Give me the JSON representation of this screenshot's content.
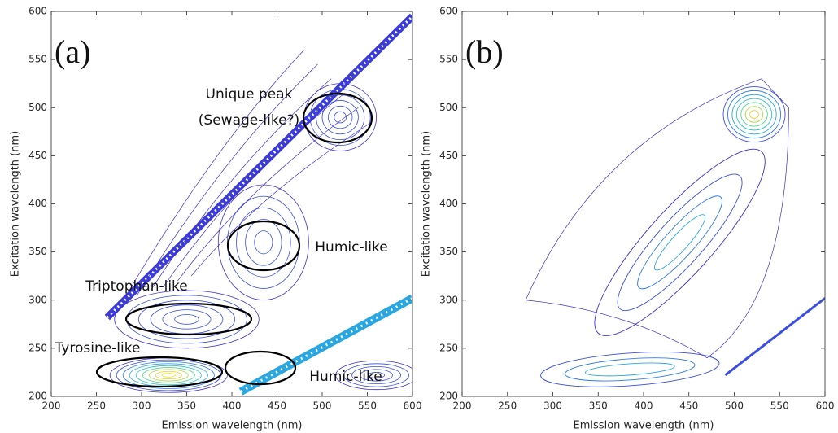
{
  "chart_data": [
    {
      "type": "contour",
      "panel_label": "(a)",
      "xlabel": "Emission wavelength (nm)",
      "ylabel": "Excitation wavelength (nm)",
      "xlim": [
        200,
        600
      ],
      "ylim": [
        200,
        600
      ],
      "xticks": [
        200,
        250,
        300,
        350,
        400,
        450,
        500,
        550,
        600
      ],
      "yticks": [
        200,
        250,
        300,
        350,
        400,
        450,
        500,
        550,
        600
      ],
      "annotations": [
        "Unique peak",
        "(Sewage-like?)",
        "Humic-like",
        "Triptophan-like",
        "Tyrosine-like",
        "Humic-like"
      ]
    },
    {
      "type": "contour",
      "panel_label": "(b)",
      "xlabel": "Emission wavelength (nm)",
      "ylabel": "Excitation wavelength (nm)",
      "xlim": [
        200,
        600
      ],
      "ylim": [
        200,
        600
      ],
      "xticks": [
        200,
        250,
        300,
        350,
        400,
        450,
        500,
        550,
        600
      ],
      "yticks": [
        200,
        250,
        300,
        350,
        400,
        450,
        500,
        550,
        600
      ]
    }
  ]
}
